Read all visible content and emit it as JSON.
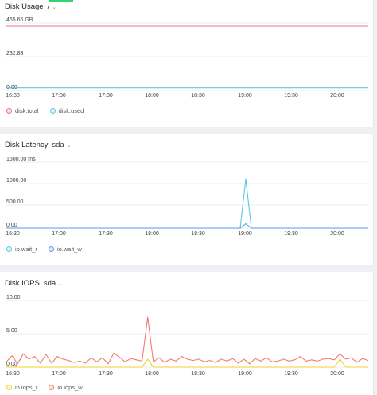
{
  "chart_data": [
    {
      "type": "line",
      "title": "Disk Usage",
      "selector": "/",
      "y_ticks": [
        "465.66 GB",
        "232.83",
        "0.00"
      ],
      "ylim": [
        0,
        465.66
      ],
      "x_ticks": [
        "16:30",
        "17:00",
        "17:30",
        "18:00",
        "18:30",
        "19:00",
        "19:30",
        "20:00"
      ],
      "series": [
        {
          "name": "disk.total",
          "color": "#ec6fa0",
          "values": [
            465.66,
            465.66,
            465.66,
            465.66,
            465.66,
            465.66,
            465.66,
            465.66,
            465.66,
            465.66,
            465.66,
            465.66,
            465.66,
            465.66,
            465.66,
            465.66
          ]
        },
        {
          "name": "disk.used",
          "color": "#5bc8dd",
          "values": [
            2,
            2,
            2,
            2,
            2,
            2,
            2,
            2,
            2,
            2,
            2,
            2,
            2,
            2,
            2,
            2
          ]
        }
      ]
    },
    {
      "type": "line",
      "title": "Disk Latency",
      "selector": "sda",
      "y_ticks": [
        "1500.00 ms",
        "1000.00",
        "500.00",
        "0.00"
      ],
      "ylim": [
        0,
        1500
      ],
      "x_ticks": [
        "16:30",
        "17:00",
        "17:30",
        "18:00",
        "18:30",
        "19:00",
        "19:30",
        "20:00"
      ],
      "series": [
        {
          "name": "io.wait_r",
          "color": "#5bc8dd",
          "values": [
            0,
            0,
            0,
            0,
            0,
            0,
            0,
            0,
            0,
            0,
            0,
            0,
            0,
            0,
            0,
            0,
            0,
            0,
            0,
            0,
            0,
            0,
            0,
            0,
            0,
            0,
            0,
            0,
            0,
            0,
            0,
            0,
            0,
            0,
            0,
            0,
            0,
            0,
            0,
            0,
            0,
            0,
            0,
            1120,
            0,
            0,
            0,
            0,
            0,
            0,
            0,
            0,
            0,
            0,
            0,
            0,
            0,
            0,
            0,
            0,
            0,
            0,
            0,
            0,
            0,
            0
          ]
        },
        {
          "name": "io.wait_w",
          "color": "#5a9be6",
          "values": [
            0,
            0,
            0,
            0,
            0,
            0,
            0,
            0,
            0,
            0,
            0,
            0,
            0,
            0,
            0,
            0,
            0,
            0,
            0,
            0,
            0,
            0,
            0,
            0,
            0,
            0,
            0,
            0,
            0,
            0,
            0,
            0,
            0,
            0,
            0,
            0,
            0,
            0,
            0,
            0,
            0,
            0,
            0,
            100,
            0,
            0,
            0,
            0,
            0,
            0,
            0,
            0,
            0,
            0,
            0,
            0,
            0,
            0,
            0,
            0,
            0,
            0,
            0,
            0,
            0,
            0
          ]
        }
      ]
    },
    {
      "type": "line",
      "title": "Disk IOPS",
      "selector": "sda",
      "y_ticks": [
        "10.00",
        "5.00",
        "0.00"
      ],
      "ylim": [
        0,
        10
      ],
      "x_ticks": [
        "16:30",
        "17:00",
        "17:30",
        "18:00",
        "18:30",
        "19:00",
        "19:30",
        "20:00"
      ],
      "series": [
        {
          "name": "io.iops_r",
          "color": "#f2d12e",
          "values": [
            0,
            0,
            0,
            0,
            0,
            0,
            0,
            0,
            0,
            0,
            0,
            0,
            0,
            0,
            0,
            0,
            0,
            0,
            0,
            0,
            0,
            0,
            0,
            0,
            0,
            1.2,
            0,
            0,
            0,
            0,
            0,
            0,
            0,
            0,
            0,
            0,
            0,
            0,
            0,
            0,
            0,
            0,
            0,
            0,
            0,
            0,
            0,
            0,
            0,
            0,
            0,
            0,
            0,
            0,
            0,
            0,
            0,
            0,
            0,
            1.2,
            0,
            0,
            0,
            0,
            0
          ]
        },
        {
          "name": "io.iops_w",
          "color": "#f07a72",
          "values": [
            0.8,
            1.7,
            0.5,
            2.0,
            1.2,
            1.6,
            0.6,
            1.9,
            0.6,
            1.6,
            1.2,
            1.0,
            0.7,
            0.9,
            0.6,
            1.4,
            0.8,
            1.4,
            0.5,
            2.1,
            1.5,
            0.8,
            1.3,
            1.1,
            0.9,
            7.5,
            0.8,
            1.4,
            0.7,
            1.2,
            0.9,
            1.6,
            1.2,
            1.0,
            1.2,
            0.8,
            1.0,
            0.7,
            1.2,
            0.9,
            1.3,
            0.6,
            1.2,
            0.5,
            1.3,
            0.9,
            1.4,
            0.8,
            0.9,
            1.2,
            0.9,
            1.1,
            1.6,
            0.9,
            1.1,
            0.9,
            1.2,
            1.3,
            1.1,
            2.0,
            1.2,
            1.4,
            0.7,
            1.3,
            1.0
          ]
        }
      ]
    }
  ]
}
